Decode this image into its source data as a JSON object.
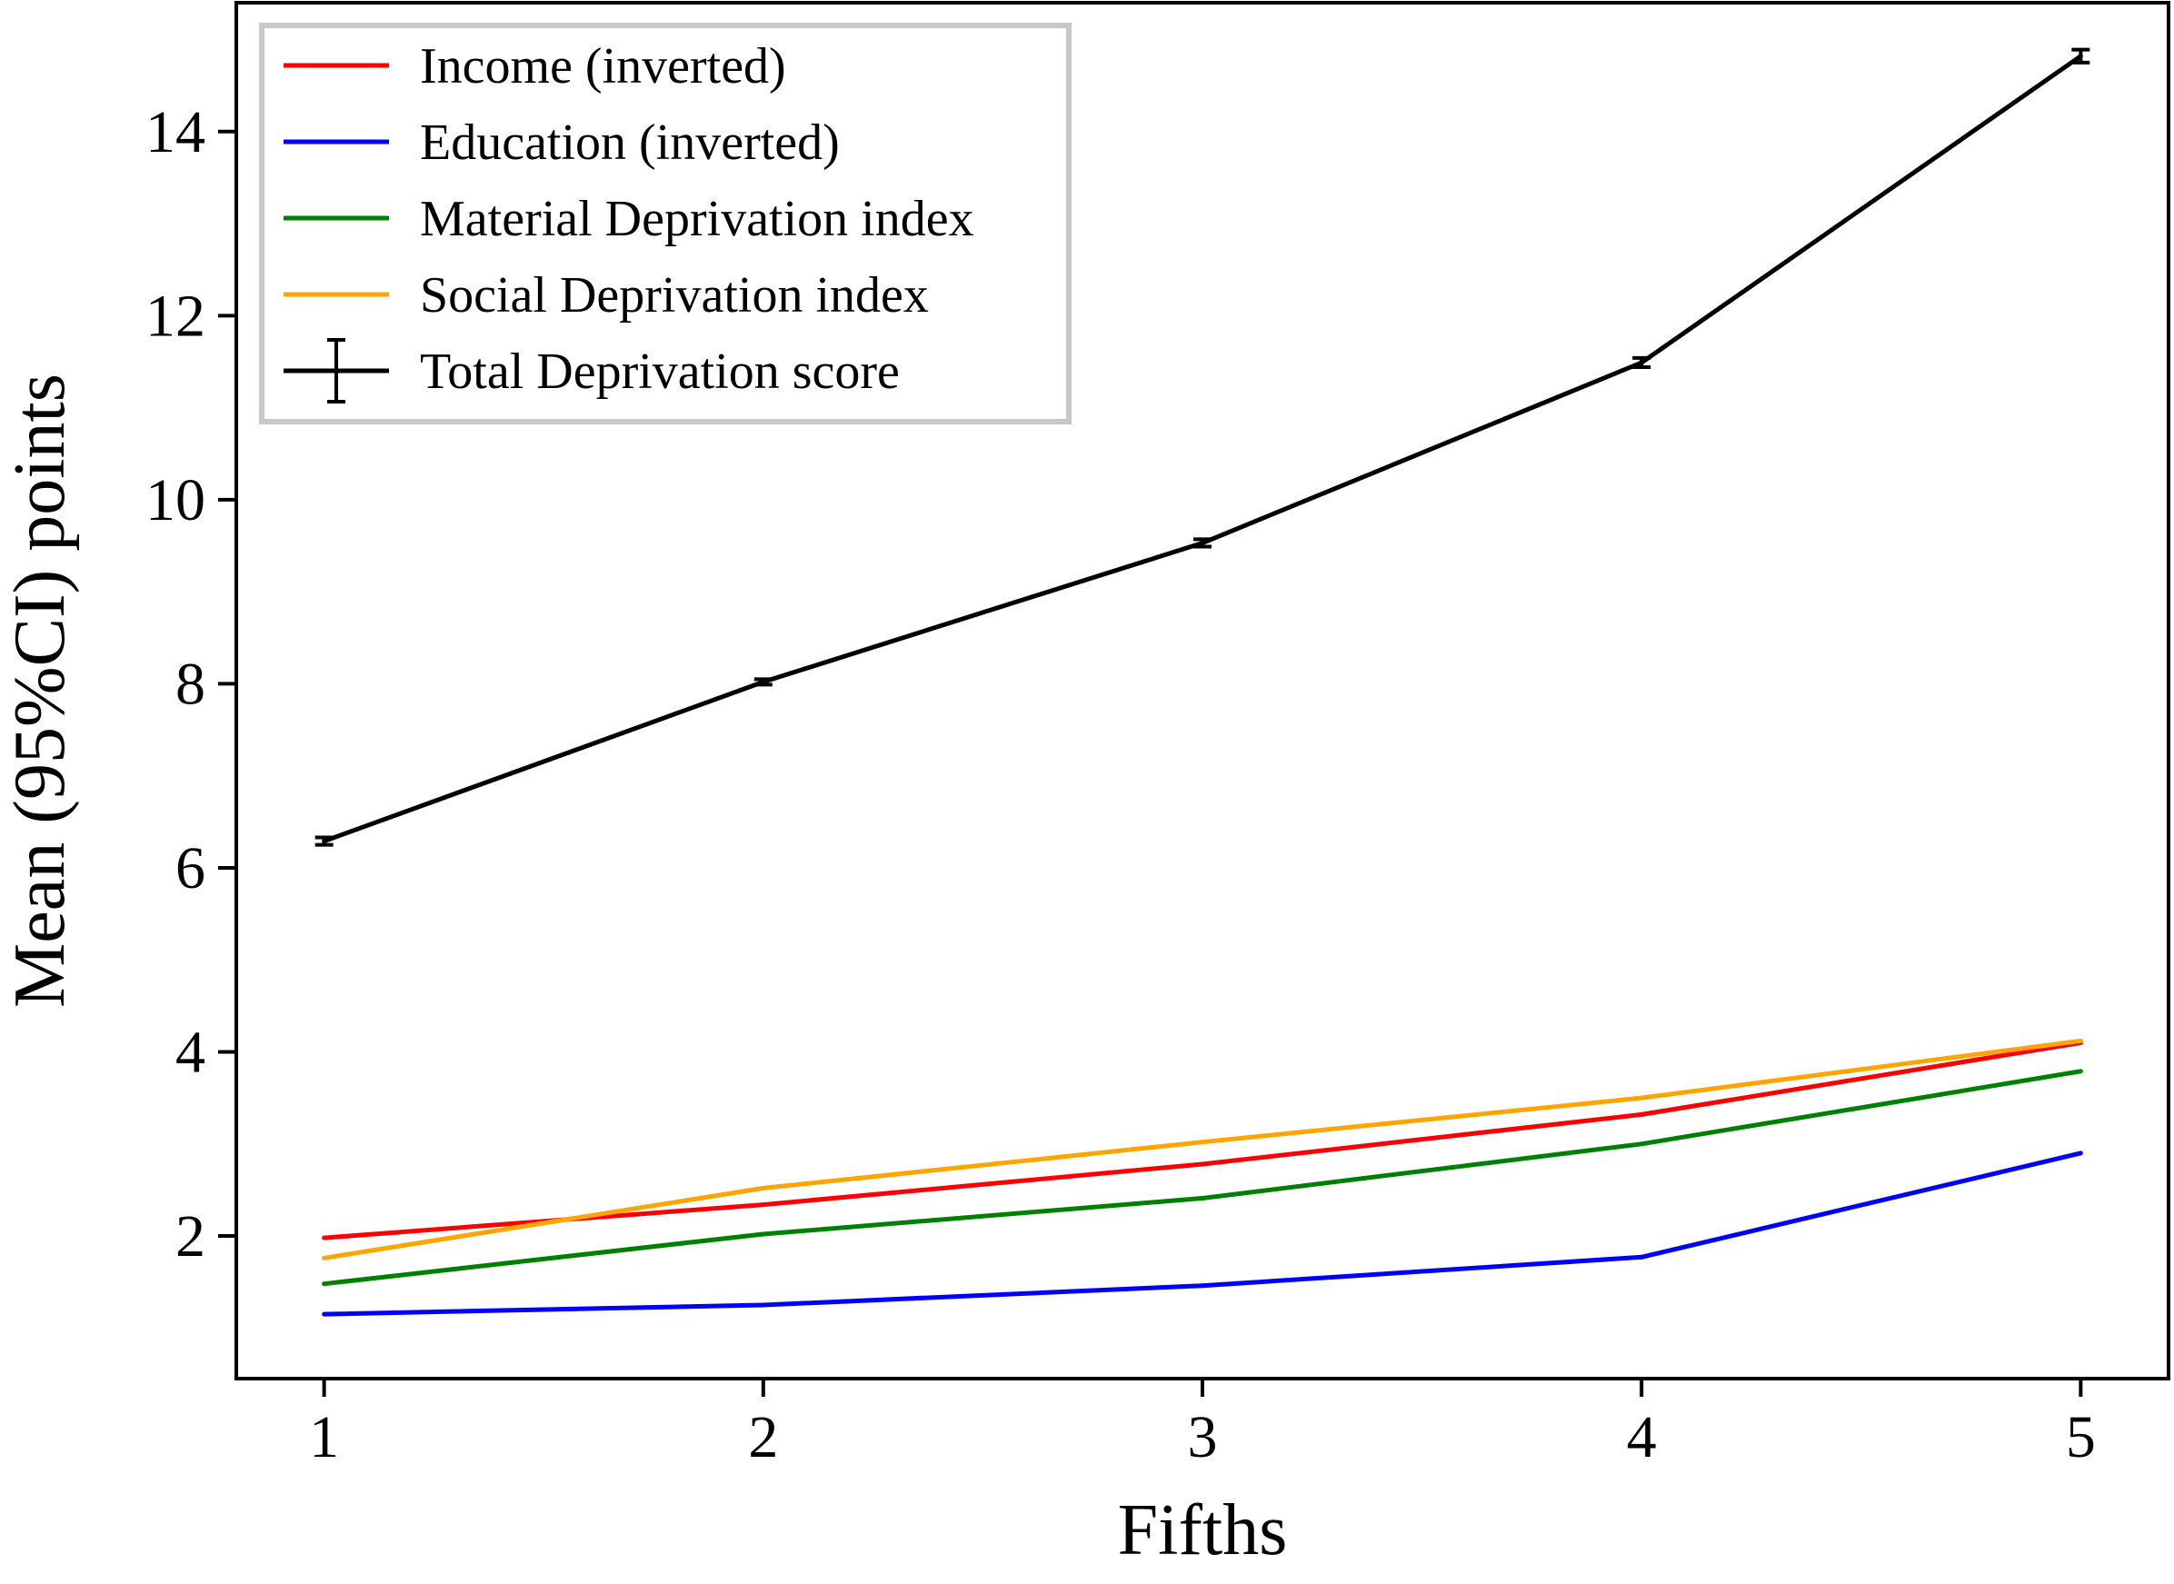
{
  "chart_data": {
    "type": "line",
    "xlabel": "Fifths",
    "ylabel": "Mean (95%CI) points",
    "x": [
      1,
      2,
      3,
      4,
      5
    ],
    "xticks": [
      "1",
      "2",
      "3",
      "4",
      "5"
    ],
    "yticks": [
      "2",
      "4",
      "6",
      "8",
      "10",
      "12",
      "14"
    ],
    "xlim": [
      0.8,
      5.2
    ],
    "ylim": [
      0.45,
      15.4
    ],
    "grid": false,
    "legend_position": "top-left",
    "series": [
      {
        "name": "Income (inverted)",
        "color": "#ff0000",
        "values": [
          1.98,
          2.34,
          2.78,
          3.32,
          4.1
        ]
      },
      {
        "name": "Education (inverted)",
        "color": "#0000ff",
        "values": [
          1.15,
          1.25,
          1.46,
          1.77,
          2.9
        ]
      },
      {
        "name": "Material Deprivation index",
        "color": "#008000",
        "values": [
          1.48,
          2.02,
          2.41,
          3.0,
          3.79
        ]
      },
      {
        "name": "Social Deprivation index",
        "color": "#ffa500",
        "values": [
          1.76,
          2.52,
          3.02,
          3.5,
          4.12
        ]
      },
      {
        "name": "Total Deprivation score",
        "color": "#000000",
        "values": [
          6.29,
          8.02,
          9.53,
          11.49,
          14.82
        ],
        "ci_low": [
          6.25,
          7.99,
          9.49,
          11.44,
          14.75
        ],
        "ci_high": [
          6.33,
          8.05,
          9.57,
          11.54,
          14.89
        ],
        "error_bars": true
      }
    ]
  }
}
